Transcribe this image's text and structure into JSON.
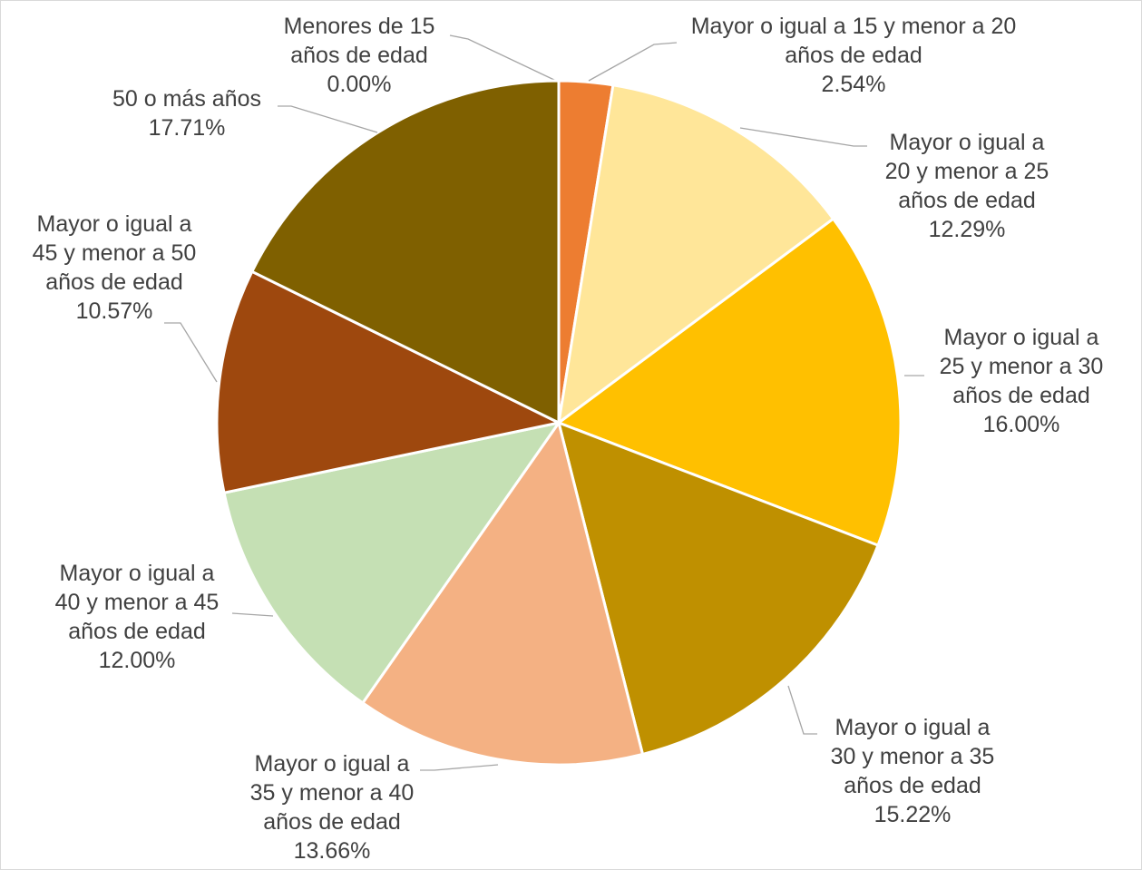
{
  "chart_data": {
    "type": "pie",
    "categories": [
      "Menores de 15 años de edad",
      "Mayor o igual a 15 y menor a 20 años de edad",
      "Mayor o igual a 20 y menor a 25 años de edad",
      "Mayor o igual a 25 y menor a 30 años de edad",
      "Mayor o igual a 30 y menor a 35 años de edad",
      "Mayor o igual a 35 y menor a 40 años de edad",
      "Mayor o igual a 40 y menor a 45 años de edad",
      "Mayor o igual a 45 y menor a 50 años de edad",
      "50 o más años"
    ],
    "values": [
      0,
      2.54,
      12.29,
      16.0,
      15.22,
      13.66,
      12.0,
      10.57,
      17.71
    ],
    "value_labels": [
      "0.00%",
      "2.54%",
      "12.29%",
      "16.00%",
      "15.22%",
      "13.66%",
      "12.00%",
      "10.57%",
      "17.71%"
    ],
    "colors": [
      "#4472c4",
      "#ED7D31",
      "#FFE699",
      "#FFC000",
      "#BF9000",
      "#F4B183",
      "#C5E0B4",
      "#9E480E",
      "#7F6000"
    ]
  }
}
